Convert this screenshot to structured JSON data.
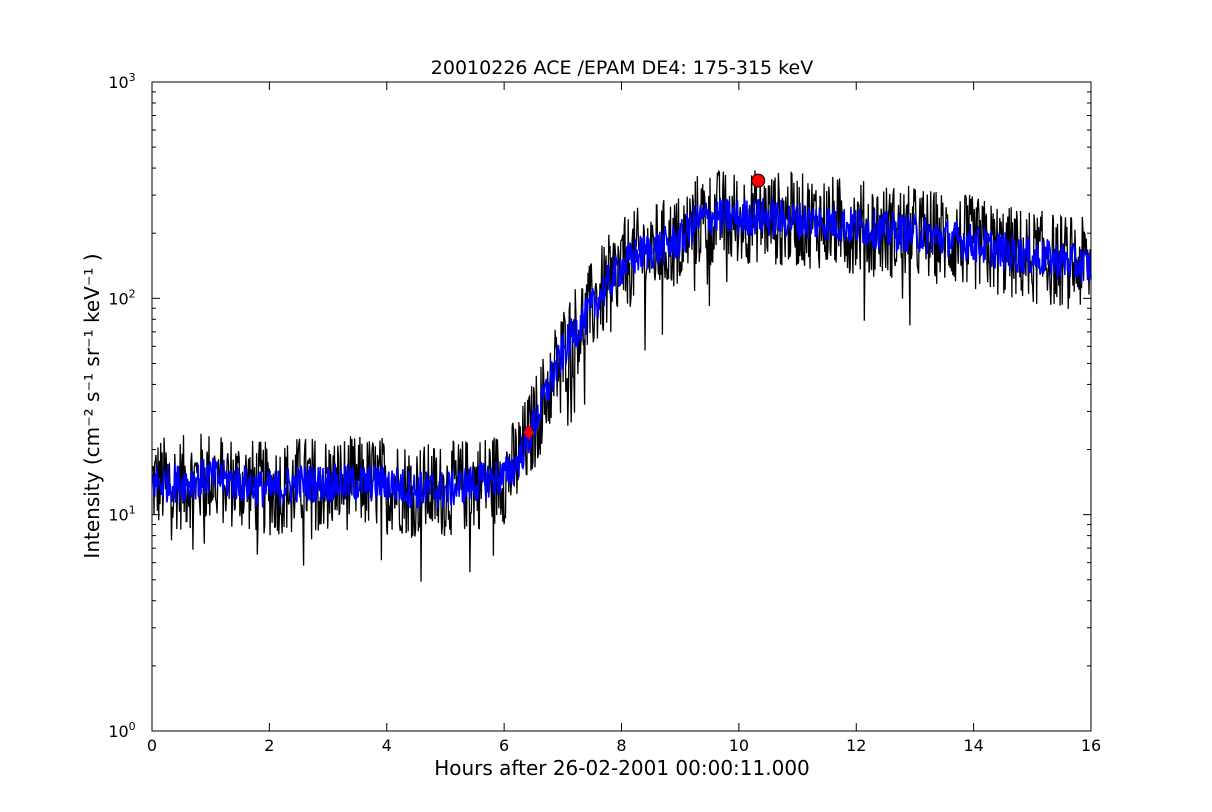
{
  "chart_data": {
    "type": "line",
    "title": "20010226 ACE /EPAM DE4: 175-315 keV",
    "xlabel": "Hours after 26-02-2001 00:00:11.000",
    "ylabel": "Intensity (cm⁻² s⁻¹ sr⁻¹ keV⁻¹ )",
    "xlim": [
      0,
      16
    ],
    "ylim": [
      1,
      1000
    ],
    "yscale": "log",
    "grid": false,
    "x_ticks": [
      "0",
      "2",
      "4",
      "6",
      "8",
      "10",
      "12",
      "14",
      "16"
    ],
    "y_ticks": [
      {
        "base": "10",
        "exp": "0"
      },
      {
        "base": "10",
        "exp": "1"
      },
      {
        "base": "10",
        "exp": "2"
      },
      {
        "base": "10",
        "exp": "3"
      }
    ],
    "series": [
      {
        "role": "raw",
        "color": "#000000",
        "x": [
          0.0,
          0.5,
          1.0,
          1.5,
          2.0,
          2.5,
          3.0,
          3.5,
          4.0,
          4.5,
          5.0,
          5.5,
          6.0,
          6.2,
          6.4,
          6.6,
          6.8,
          7.0,
          7.2,
          7.4,
          7.6,
          7.8,
          8.0,
          8.3,
          8.6,
          9.0,
          9.3,
          9.6,
          10.0,
          10.3,
          10.6,
          11.0,
          11.5,
          12.0,
          12.5,
          13.0,
          13.5,
          14.0,
          14.5,
          15.0,
          15.5,
          16.0
        ],
        "y": [
          14,
          14,
          15,
          14,
          13,
          14,
          14,
          14,
          14,
          13,
          13,
          14,
          15,
          17,
          22,
          30,
          42,
          56,
          70,
          82,
          100,
          120,
          140,
          160,
          170,
          185,
          230,
          240,
          235,
          240,
          235,
          230,
          225,
          215,
          205,
          200,
          190,
          180,
          165,
          155,
          150,
          140
        ]
      },
      {
        "role": "smoothed",
        "color": "#0000ff",
        "x": [
          0.0,
          0.5,
          1.0,
          1.5,
          2.0,
          2.5,
          3.0,
          3.5,
          4.0,
          4.5,
          5.0,
          5.5,
          6.0,
          6.2,
          6.4,
          6.6,
          6.8,
          7.0,
          7.2,
          7.4,
          7.6,
          7.8,
          8.0,
          8.3,
          8.6,
          9.0,
          9.3,
          9.6,
          10.0,
          10.3,
          10.6,
          11.0,
          11.5,
          12.0,
          12.5,
          13.0,
          13.5,
          14.0,
          14.5,
          15.0,
          15.5,
          16.0
        ],
        "y": [
          14,
          14,
          15,
          14,
          13,
          14,
          14,
          14,
          14,
          13,
          13,
          14,
          15,
          17,
          22,
          30,
          42,
          56,
          70,
          82,
          100,
          120,
          140,
          160,
          170,
          185,
          230,
          240,
          235,
          240,
          235,
          230,
          225,
          215,
          205,
          200,
          190,
          180,
          165,
          155,
          150,
          140
        ]
      }
    ],
    "markers": [
      {
        "shape": "diamond",
        "color": "#ff0000",
        "x": 6.42,
        "y": 24
      },
      {
        "shape": "circle",
        "color": "#ff0000",
        "x": 10.33,
        "y": 350
      }
    ]
  }
}
